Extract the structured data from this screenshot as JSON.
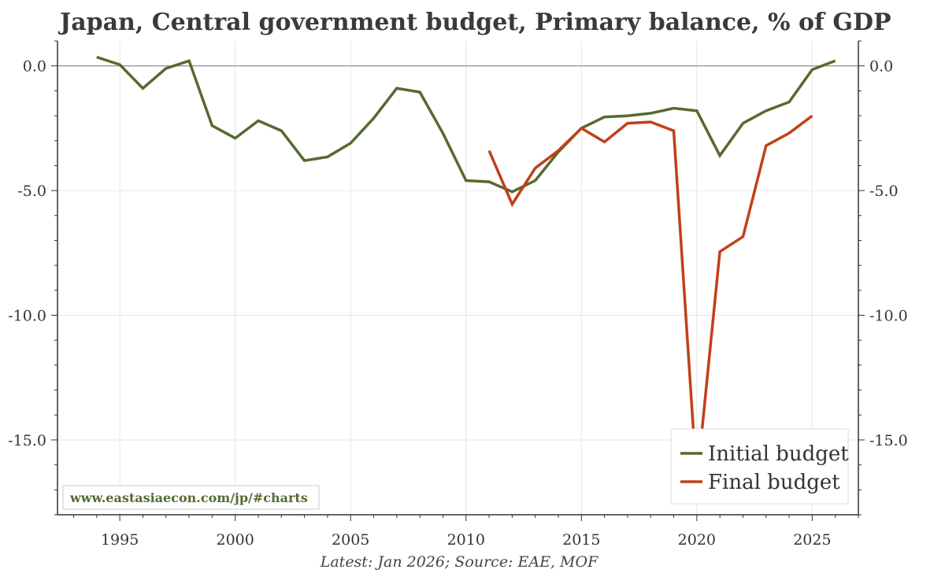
{
  "chart_data": {
    "type": "line",
    "title": "Japan, Central government budget, Primary balance, % of GDP",
    "caption": "Latest: Jan 2026; Source: EAE, MOF",
    "source_url": "www.eastasiaecon.com/jp/#charts",
    "xlabel": "",
    "ylabel": "",
    "xlim": [
      1992.3,
      2027.0
    ],
    "ylim": [
      -18.0,
      1.0
    ],
    "x_ticks": [
      1995,
      2000,
      2005,
      2010,
      2015,
      2020,
      2025
    ],
    "x_tick_labels": [
      "1995",
      "2000",
      "2005",
      "2010",
      "2015",
      "2020",
      "2025"
    ],
    "y_ticks": [
      0.0,
      -5.0,
      -10.0,
      -15.0
    ],
    "y_tick_labels": [
      "0.0",
      "-5.0",
      "-10.0",
      "-15.0"
    ],
    "grid": true,
    "legend_position": "bottom-right",
    "series": [
      {
        "name": "Initial budget",
        "color": "#556b2f",
        "x": [
          1994,
          1995,
          1996,
          1997,
          1998,
          1999,
          2000,
          2001,
          2002,
          2003,
          2004,
          2005,
          2006,
          2007,
          2008,
          2009,
          2010,
          2011,
          2012,
          2013,
          2014,
          2015,
          2016,
          2017,
          2018,
          2019,
          2020,
          2021,
          2022,
          2023,
          2024,
          2025,
          2026
        ],
        "values": [
          0.35,
          0.05,
          -0.9,
          -0.1,
          0.2,
          -2.4,
          -2.9,
          -2.2,
          -2.6,
          -3.8,
          -3.65,
          -3.1,
          -2.1,
          -0.9,
          -1.05,
          -2.7,
          -4.6,
          -4.65,
          -5.05,
          -4.6,
          -3.45,
          -2.5,
          -2.05,
          -2.0,
          -1.9,
          -1.7,
          -1.8,
          -3.6,
          -2.3,
          -1.8,
          -1.45,
          -0.15,
          0.2
        ]
      },
      {
        "name": "Final budget",
        "color": "#c0401a",
        "x": [
          2011,
          2012,
          2013,
          2014,
          2015,
          2016,
          2017,
          2018,
          2019,
          2020,
          2021,
          2022,
          2023,
          2024,
          2025
        ],
        "values": [
          -3.4,
          -5.55,
          -4.1,
          -3.4,
          -2.5,
          -3.05,
          -2.3,
          -2.25,
          -2.6,
          -16.7,
          -7.45,
          -6.85,
          -3.2,
          -2.7,
          -2.0
        ]
      }
    ]
  },
  "colors": {
    "grid": "#e6e6e6",
    "zero_line": "#9a9a9a",
    "axis": "#333333",
    "legend_border": "#dddddd",
    "url_border": "#cccccc"
  }
}
